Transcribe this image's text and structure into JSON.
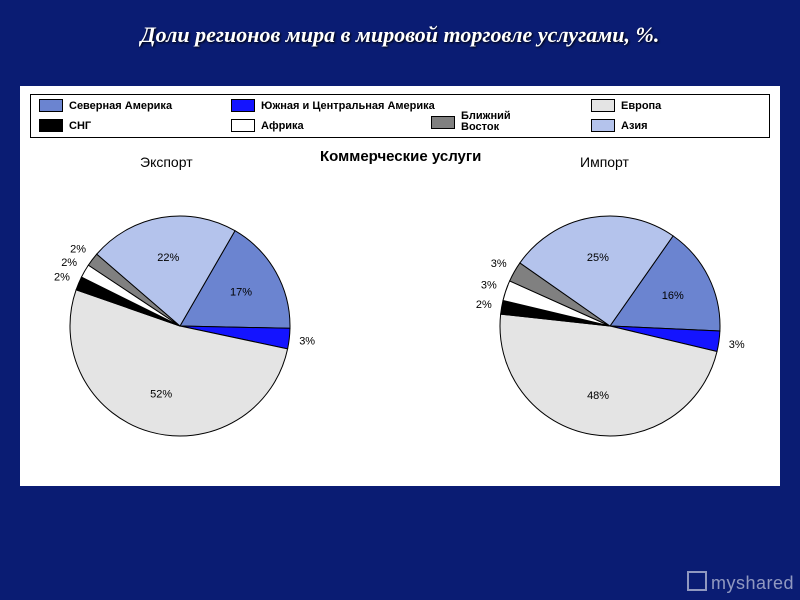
{
  "page": {
    "background_color": "#0a1c73",
    "title": "Доли регионов мира в мировой торговле услугами, %.",
    "title_color": "#ffffff",
    "title_fontsize": 22
  },
  "chart_panel": {
    "background_color": "#ffffff",
    "section_title": "Коммерческие услуги"
  },
  "legend": {
    "border_color": "#000000",
    "items": [
      {
        "label": "Северная Америка",
        "color": "#6b84d0"
      },
      {
        "label": "Южная и Центральная Америка",
        "color": "#1414ff"
      },
      {
        "label": "Европа",
        "color": "#e4e4e4"
      },
      {
        "label": "СНГ",
        "color": "#000000"
      },
      {
        "label": "Африка",
        "color": "#ffffff"
      },
      {
        "label": "Ближний Восток",
        "color": "#808080"
      },
      {
        "label": "Азия",
        "color": "#b4c3ec"
      }
    ]
  },
  "pies": {
    "export": {
      "title": "Экспорт",
      "start_angle_deg": -60,
      "slices": [
        {
          "label_key": "Северная Америка",
          "value": 17,
          "color": "#6b84d0",
          "label": "17%"
        },
        {
          "label_key": "Южная и Центральная Америка",
          "value": 3,
          "color": "#1414ff",
          "label": "3%"
        },
        {
          "label_key": "Европа",
          "value": 52,
          "color": "#e4e4e4",
          "label": "52%"
        },
        {
          "label_key": "СНГ",
          "value": 2,
          "color": "#000000",
          "label": "2%"
        },
        {
          "label_key": "Африка",
          "value": 2,
          "color": "#ffffff",
          "label": "2%"
        },
        {
          "label_key": "Ближний Восток",
          "value": 2,
          "color": "#808080",
          "label": "2%"
        },
        {
          "label_key": "Азия",
          "value": 22,
          "color": "#b4c3ec",
          "label": "22%"
        }
      ]
    },
    "import": {
      "title": "Импорт",
      "start_angle_deg": -55,
      "slices": [
        {
          "label_key": "Северная Америка",
          "value": 16,
          "color": "#6b84d0",
          "label": "16%"
        },
        {
          "label_key": "Южная и Центральная Америка",
          "value": 3,
          "color": "#1414ff",
          "label": "3%"
        },
        {
          "label_key": "Европа",
          "value": 48,
          "color": "#e4e4e4",
          "label": "48%"
        },
        {
          "label_key": "СНГ",
          "value": 2,
          "color": "#000000",
          "label": "2%"
        },
        {
          "label_key": "Африка",
          "value": 3,
          "color": "#ffffff",
          "label": "3%"
        },
        {
          "label_key": "Ближний Восток",
          "value": 3,
          "color": "#808080",
          "label": "3%"
        },
        {
          "label_key": "Азия",
          "value": 25,
          "color": "#b4c3ec",
          "label": "25%"
        }
      ]
    },
    "stroke_color": "#000000",
    "stroke_width": 1,
    "radius": 110,
    "label_fontsize": 11,
    "label_radius_big": 70,
    "label_radius_small": 128
  },
  "watermark": {
    "text": "myshared"
  }
}
